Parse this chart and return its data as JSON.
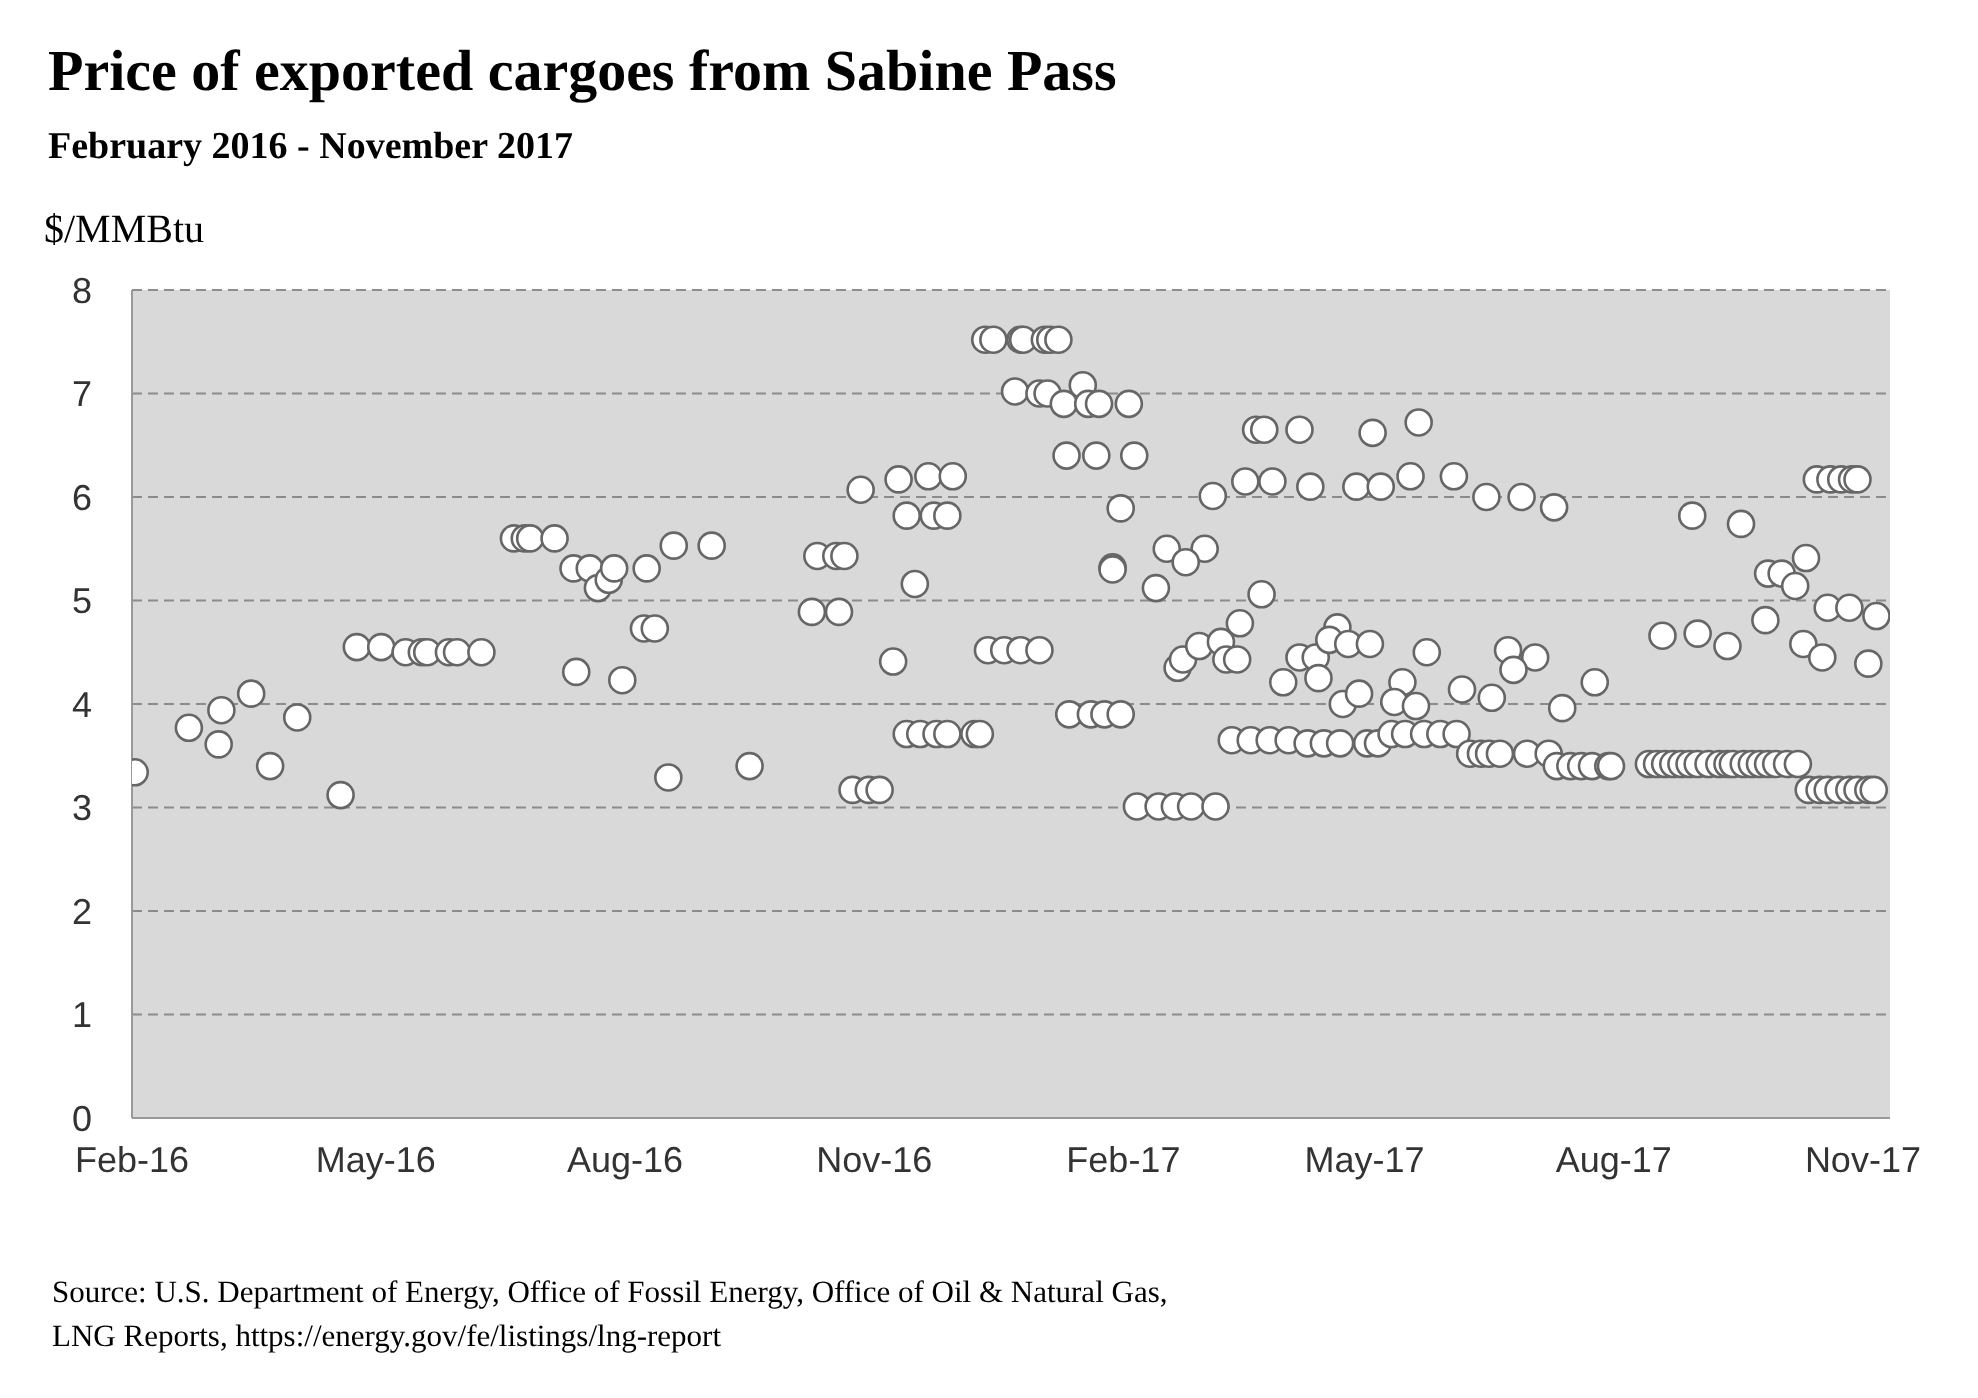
{
  "chart_data": {
    "type": "scatter",
    "title": "Price of exported cargoes from Sabine Pass",
    "subtitle": "February 2016 - November 2017",
    "ylabel": "$/MMBtu",
    "annotations": [
      "Source: U.S. Department of Energy, Office of Fossil Energy, Office of Oil & Natural Gas, LNG Reports, https://energy.gov/fe/listings/lng-report"
    ],
    "xlim": [
      "2016-02-01",
      "2017-11-11"
    ],
    "xticks": [
      {
        "value": "2016-02-01",
        "label": "Feb-16"
      },
      {
        "value": "2016-05-01",
        "label": "May-16"
      },
      {
        "value": "2016-08-01",
        "label": "Aug-16"
      },
      {
        "value": "2016-11-01",
        "label": "Nov-16"
      },
      {
        "value": "2017-02-01",
        "label": "Feb-17"
      },
      {
        "value": "2017-05-01",
        "label": "May-17"
      },
      {
        "value": "2017-08-01",
        "label": "Aug-17"
      },
      {
        "value": "2017-11-01",
        "label": "Nov-17"
      }
    ],
    "ylim": [
      0,
      8
    ],
    "yticks": [
      0,
      1,
      2,
      3,
      4,
      5,
      6,
      7,
      8
    ],
    "grid": "y",
    "marker": "circle",
    "series": [
      {
        "color": "#ffffff",
        "x": [
          "2016-02-02",
          "2016-02-22",
          "2016-03-04",
          "2016-03-05",
          "2016-03-16",
          "2016-03-23",
          "2016-04-02",
          "2016-04-18",
          "2016-04-24",
          "2016-05-03",
          "2016-05-12",
          "2016-05-18",
          "2016-05-20",
          "2016-05-28",
          "2016-05-31",
          "2016-06-09",
          "2016-06-21",
          "2016-06-25",
          "2016-06-27",
          "2016-07-06",
          "2016-07-13",
          "2016-07-14",
          "2016-07-19",
          "2016-07-22",
          "2016-07-26",
          "2016-07-28",
          "2016-07-31",
          "2016-08-08",
          "2016-08-09",
          "2016-08-12",
          "2016-08-17",
          "2016-08-19",
          "2016-09-02",
          "2016-09-16",
          "2016-10-09",
          "2016-10-11",
          "2016-10-18",
          "2016-10-19",
          "2016-10-21",
          "2016-10-24",
          "2016-10-27",
          "2016-10-30",
          "2016-11-03",
          "2016-11-08",
          "2016-11-10",
          "2016-11-13",
          "2016-11-16",
          "2016-11-21",
          "2016-11-23",
          "2016-11-28",
          "2016-11-30",
          "2016-11-13",
          "2016-11-18",
          "2016-11-24",
          "2016-11-28",
          "2016-12-08",
          "2016-12-10",
          "2016-12-13",
          "2016-12-19",
          "2016-12-25",
          "2017-01-01",
          "2016-12-12",
          "2016-12-15",
          "2016-12-25",
          "2016-12-26",
          "2017-01-03",
          "2017-01-05",
          "2017-01-08",
          "2016-12-23",
          "2017-01-01",
          "2017-01-04",
          "2017-01-17",
          "2017-01-10",
          "2017-01-19",
          "2017-01-23",
          "2017-02-03",
          "2017-01-11",
          "2017-01-22",
          "2017-02-05",
          "2017-01-12",
          "2017-01-20",
          "2017-01-25",
          "2017-01-31",
          "2017-01-31",
          "2017-01-28",
          "2017-01-28",
          "2017-02-06",
          "2017-02-14",
          "2017-02-20",
          "2017-02-26",
          "2017-03-07",
          "2017-02-13",
          "2017-02-17",
          "2017-03-03",
          "2017-02-24",
          "2017-02-21",
          "2017-02-23",
          "2017-03-01",
          "2017-03-09",
          "2017-03-16",
          "2017-03-11",
          "2017-03-15",
          "2017-03-06",
          "2017-03-18",
          "2017-03-28",
          "2017-04-11",
          "2017-03-22",
          "2017-03-25",
          "2017-04-07",
          "2017-03-24",
          "2017-03-13",
          "2017-03-20",
          "2017-03-27",
          "2017-04-03",
          "2017-04-10",
          "2017-04-16",
          "2017-04-22",
          "2017-05-02",
          "2017-05-06",
          "2017-04-07",
          "2017-04-13",
          "2017-04-01",
          "2017-04-14",
          "2017-04-21",
          "2017-04-18",
          "2017-04-23",
          "2017-04-28",
          "2017-05-07",
          "2017-05-04",
          "2017-05-21",
          "2017-05-18",
          "2017-06-03",
          "2017-06-15",
          "2017-06-28",
          "2017-07-10",
          "2017-04-25",
          "2017-05-03",
          "2017-05-24",
          "2017-04-29",
          "2017-05-15",
          "2017-05-12",
          "2017-05-20",
          "2017-06-23",
          "2017-07-03",
          "2017-06-25",
          "2017-06-06",
          "2017-06-17",
          "2017-07-13",
          "2017-07-25",
          "2017-05-11",
          "2017-05-16",
          "2017-05-23",
          "2017-05-29",
          "2017-06-04",
          "2017-06-09",
          "2017-06-13",
          "2017-06-16",
          "2017-06-20",
          "2017-06-30",
          "2017-07-08",
          "2017-07-11",
          "2017-07-16",
          "2017-07-20",
          "2017-07-24",
          "2017-07-30",
          "2017-07-31",
          "2017-08-30",
          "2017-09-17",
          "2017-10-11",
          "2017-09-27",
          "2017-10-02",
          "2017-10-07",
          "2017-10-15",
          "2017-10-20",
          "2017-10-24",
          "2017-10-28",
          "2017-10-30",
          "2017-09-26",
          "2017-10-19",
          "2017-10-27",
          "2017-11-06",
          "2017-10-10",
          "2017-10-17",
          "2017-11-03",
          "2017-08-19",
          "2017-09-01",
          "2017-09-12",
          "2017-08-14",
          "2017-08-17",
          "2017-08-20",
          "2017-08-23",
          "2017-08-26",
          "2017-08-29",
          "2017-09-01",
          "2017-09-05",
          "2017-09-09",
          "2017-09-12",
          "2017-09-14",
          "2017-09-18",
          "2017-09-21",
          "2017-09-24",
          "2017-09-27",
          "2017-09-30",
          "2017-10-04",
          "2017-10-08",
          "2017-10-12",
          "2017-10-16",
          "2017-10-19",
          "2017-10-23",
          "2017-10-27",
          "2017-10-30",
          "2017-11-03",
          "2017-11-05"
        ],
        "values": [
          3.34,
          3.77,
          3.61,
          3.94,
          4.1,
          3.4,
          3.87,
          3.12,
          4.55,
          4.55,
          4.5,
          4.5,
          4.5,
          4.5,
          4.5,
          4.5,
          5.6,
          5.6,
          5.6,
          5.6,
          5.31,
          4.31,
          5.31,
          5.12,
          5.2,
          5.31,
          4.23,
          4.73,
          5.31,
          4.73,
          3.29,
          5.53,
          5.53,
          3.4,
          4.89,
          5.43,
          5.43,
          4.89,
          5.43,
          3.17,
          6.07,
          3.17,
          3.17,
          4.41,
          6.17,
          5.82,
          5.16,
          6.2,
          5.82,
          5.82,
          6.2,
          3.71,
          3.71,
          3.71,
          3.71,
          3.71,
          3.71,
          4.52,
          4.52,
          4.52,
          4.52,
          7.52,
          7.52,
          7.52,
          7.52,
          7.52,
          7.52,
          7.52,
          7.02,
          7.0,
          7.0,
          7.08,
          6.9,
          6.9,
          6.9,
          6.9,
          6.4,
          6.4,
          6.4,
          3.9,
          3.9,
          3.9,
          3.9,
          5.89,
          5.32,
          5.3,
          3.01,
          3.01,
          3.01,
          3.01,
          3.01,
          5.12,
          5.5,
          5.5,
          5.37,
          4.35,
          4.43,
          4.56,
          4.6,
          4.78,
          4.43,
          4.43,
          6.01,
          6.15,
          6.15,
          6.1,
          6.65,
          6.65,
          6.65,
          5.06,
          3.65,
          3.65,
          3.65,
          3.65,
          3.62,
          3.62,
          3.62,
          3.62,
          3.62,
          4.45,
          4.45,
          4.21,
          4.25,
          4.74,
          4.62,
          4.0,
          6.1,
          6.1,
          6.62,
          6.72,
          6.2,
          6.2,
          6.0,
          6.0,
          5.9,
          4.58,
          4.58,
          4.5,
          4.1,
          4.21,
          4.02,
          3.98,
          4.52,
          4.45,
          4.33,
          4.14,
          4.06,
          3.96,
          4.21,
          3.71,
          3.71,
          3.71,
          3.71,
          3.71,
          3.52,
          3.52,
          3.52,
          3.52,
          3.52,
          3.52,
          3.4,
          3.4,
          3.4,
          3.4,
          3.4,
          3.4,
          5.82,
          5.74,
          5.41,
          5.26,
          5.26,
          5.14,
          6.17,
          6.17,
          6.17,
          6.17,
          6.17,
          4.81,
          4.93,
          4.93,
          4.85,
          4.58,
          4.45,
          4.39,
          4.66,
          4.68,
          4.56,
          3.42,
          3.42,
          3.42,
          3.42,
          3.42,
          3.42,
          3.42,
          3.42,
          3.42,
          3.42,
          3.42,
          3.42,
          3.42,
          3.42,
          3.42,
          3.42,
          3.42,
          3.42,
          3.17,
          3.17,
          3.17,
          3.17,
          3.17,
          3.17,
          3.17,
          3.17
        ]
      }
    ]
  }
}
